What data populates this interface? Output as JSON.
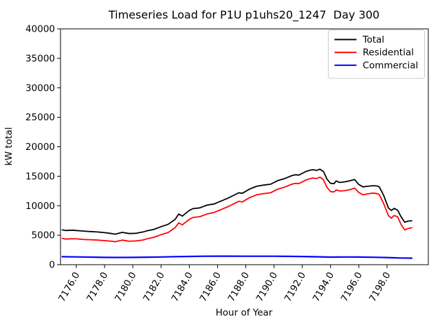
{
  "chart_data": {
    "type": "line",
    "title": "Timeseries Load for P1U p1uhs20_1247  Day 300",
    "xlabel": "Hour of Year",
    "ylabel": "kW total",
    "ylim": [
      0,
      40000
    ],
    "xlim": [
      7174.8,
      7200.5
    ],
    "grid": false,
    "y_ticks": [
      0,
      5000,
      10000,
      15000,
      20000,
      25000,
      30000,
      35000,
      40000
    ],
    "x_ticks": [
      7176,
      7178,
      7180,
      7182,
      7184,
      7186,
      7188,
      7190,
      7192,
      7194,
      7196,
      7198
    ],
    "x_tick_labels": [
      "7176.0",
      "7178.0",
      "7180.0",
      "7182.0",
      "7184.0",
      "7186.0",
      "7188.0",
      "7190.0",
      "7192.0",
      "7194.0",
      "7196.0",
      "7198.0"
    ],
    "legend": {
      "position": "upper right",
      "entries": [
        {
          "label": "Total",
          "color": "#000000"
        },
        {
          "label": "Residential",
          "color": "#ff0000"
        },
        {
          "label": "Commercial",
          "color": "#0000ff"
        }
      ]
    },
    "series": [
      {
        "name": "Total",
        "color": "#000000",
        "width": 1.8,
        "points": [
          [
            7175.0,
            5900
          ],
          [
            7175.25,
            5800
          ],
          [
            7175.75,
            5850
          ],
          [
            7176.0,
            5800
          ],
          [
            7176.5,
            5700
          ],
          [
            7177.0,
            5620
          ],
          [
            7177.5,
            5550
          ],
          [
            7178.0,
            5430
          ],
          [
            7178.5,
            5280
          ],
          [
            7178.75,
            5180
          ],
          [
            7179.25,
            5480
          ],
          [
            7179.75,
            5280
          ],
          [
            7180.25,
            5330
          ],
          [
            7180.75,
            5560
          ],
          [
            7181.0,
            5750
          ],
          [
            7181.5,
            6000
          ],
          [
            7182.0,
            6450
          ],
          [
            7182.5,
            6850
          ],
          [
            7183.0,
            7700
          ],
          [
            7183.25,
            8600
          ],
          [
            7183.5,
            8250
          ],
          [
            7184.0,
            9200
          ],
          [
            7184.25,
            9500
          ],
          [
            7184.75,
            9650
          ],
          [
            7185.25,
            10100
          ],
          [
            7185.75,
            10300
          ],
          [
            7186.25,
            10800
          ],
          [
            7186.75,
            11300
          ],
          [
            7187.25,
            11900
          ],
          [
            7187.5,
            12200
          ],
          [
            7187.75,
            12100
          ],
          [
            7188.25,
            12800
          ],
          [
            7188.75,
            13300
          ],
          [
            7189.25,
            13500
          ],
          [
            7189.75,
            13650
          ],
          [
            7190.25,
            14250
          ],
          [
            7190.75,
            14600
          ],
          [
            7191.25,
            15100
          ],
          [
            7191.5,
            15250
          ],
          [
            7191.75,
            15200
          ],
          [
            7192.25,
            15800
          ],
          [
            7192.5,
            16000
          ],
          [
            7192.75,
            16100
          ],
          [
            7193.0,
            16000
          ],
          [
            7193.25,
            16200
          ],
          [
            7193.5,
            15800
          ],
          [
            7193.75,
            14500
          ],
          [
            7194.0,
            13800
          ],
          [
            7194.25,
            13750
          ],
          [
            7194.4,
            14200
          ],
          [
            7194.65,
            13950
          ],
          [
            7195.0,
            14050
          ],
          [
            7195.4,
            14250
          ],
          [
            7195.7,
            14450
          ],
          [
            7196.0,
            13600
          ],
          [
            7196.3,
            13200
          ],
          [
            7196.6,
            13300
          ],
          [
            7197.0,
            13400
          ],
          [
            7197.3,
            13350
          ],
          [
            7197.45,
            13200
          ],
          [
            7197.75,
            11800
          ],
          [
            7198.1,
            9600
          ],
          [
            7198.3,
            9200
          ],
          [
            7198.5,
            9550
          ],
          [
            7198.75,
            9250
          ],
          [
            7199.0,
            8100
          ],
          [
            7199.25,
            7200
          ],
          [
            7199.5,
            7400
          ],
          [
            7199.75,
            7450
          ]
        ]
      },
      {
        "name": "Residential",
        "color": "#ff0000",
        "width": 1.8,
        "points": [
          [
            7175.0,
            4450
          ],
          [
            7175.25,
            4350
          ],
          [
            7175.75,
            4400
          ],
          [
            7176.0,
            4380
          ],
          [
            7176.5,
            4280
          ],
          [
            7177.0,
            4230
          ],
          [
            7177.5,
            4180
          ],
          [
            7178.0,
            4080
          ],
          [
            7178.5,
            3980
          ],
          [
            7178.75,
            3900
          ],
          [
            7179.25,
            4180
          ],
          [
            7179.75,
            3980
          ],
          [
            7180.25,
            4030
          ],
          [
            7180.75,
            4200
          ],
          [
            7181.0,
            4380
          ],
          [
            7181.5,
            4650
          ],
          [
            7182.0,
            5100
          ],
          [
            7182.5,
            5450
          ],
          [
            7183.0,
            6300
          ],
          [
            7183.25,
            7100
          ],
          [
            7183.5,
            6750
          ],
          [
            7184.0,
            7700
          ],
          [
            7184.25,
            8000
          ],
          [
            7184.75,
            8150
          ],
          [
            7185.25,
            8600
          ],
          [
            7185.75,
            8850
          ],
          [
            7186.25,
            9350
          ],
          [
            7186.75,
            9850
          ],
          [
            7187.25,
            10450
          ],
          [
            7187.5,
            10750
          ],
          [
            7187.75,
            10650
          ],
          [
            7188.25,
            11350
          ],
          [
            7188.75,
            11850
          ],
          [
            7189.25,
            12050
          ],
          [
            7189.75,
            12200
          ],
          [
            7190.25,
            12800
          ],
          [
            7190.75,
            13150
          ],
          [
            7191.25,
            13650
          ],
          [
            7191.5,
            13800
          ],
          [
            7191.75,
            13750
          ],
          [
            7192.25,
            14350
          ],
          [
            7192.5,
            14550
          ],
          [
            7192.75,
            14700
          ],
          [
            7193.0,
            14600
          ],
          [
            7193.25,
            14850
          ],
          [
            7193.5,
            14400
          ],
          [
            7193.75,
            13100
          ],
          [
            7194.0,
            12400
          ],
          [
            7194.25,
            12350
          ],
          [
            7194.4,
            12700
          ],
          [
            7194.65,
            12500
          ],
          [
            7195.0,
            12550
          ],
          [
            7195.4,
            12750
          ],
          [
            7195.7,
            13000
          ],
          [
            7196.0,
            12250
          ],
          [
            7196.3,
            11850
          ],
          [
            7196.6,
            12000
          ],
          [
            7197.0,
            12150
          ],
          [
            7197.3,
            12050
          ],
          [
            7197.45,
            11900
          ],
          [
            7197.75,
            10400
          ],
          [
            7198.1,
            8300
          ],
          [
            7198.3,
            7900
          ],
          [
            7198.5,
            8350
          ],
          [
            7198.75,
            8100
          ],
          [
            7199.0,
            6800
          ],
          [
            7199.25,
            5900
          ],
          [
            7199.5,
            6150
          ],
          [
            7199.75,
            6250
          ]
        ]
      },
      {
        "name": "Commercial",
        "color": "#0000ff",
        "width": 2.2,
        "points": [
          [
            7175.0,
            1350
          ],
          [
            7176.0,
            1320
          ],
          [
            7177.0,
            1280
          ],
          [
            7178.0,
            1240
          ],
          [
            7179.0,
            1220
          ],
          [
            7180.0,
            1240
          ],
          [
            7181.0,
            1270
          ],
          [
            7182.0,
            1310
          ],
          [
            7183.0,
            1370
          ],
          [
            7184.0,
            1400
          ],
          [
            7185.0,
            1430
          ],
          [
            7186.0,
            1450
          ],
          [
            7187.0,
            1450
          ],
          [
            7188.0,
            1440
          ],
          [
            7189.0,
            1440
          ],
          [
            7190.0,
            1430
          ],
          [
            7191.0,
            1410
          ],
          [
            7192.0,
            1390
          ],
          [
            7193.0,
            1340
          ],
          [
            7194.0,
            1280
          ],
          [
            7194.5,
            1300
          ],
          [
            7195.0,
            1310
          ],
          [
            7196.0,
            1290
          ],
          [
            7197.0,
            1260
          ],
          [
            7198.0,
            1210
          ],
          [
            7199.0,
            1130
          ],
          [
            7199.75,
            1110
          ]
        ]
      }
    ]
  }
}
